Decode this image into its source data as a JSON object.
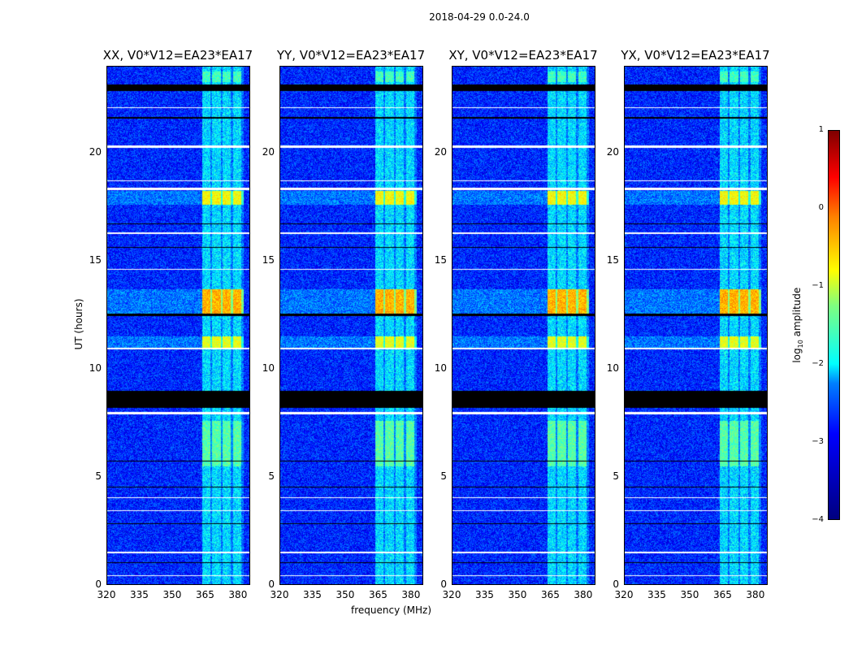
{
  "suptitle": "2018-04-29 0.0-24.0",
  "chart_data": {
    "type": "heatmap",
    "xlabel": "frequency (MHz)",
    "ylabel": "UT (hours)",
    "xlim": [
      320,
      385.6
    ],
    "ylim": [
      0,
      24
    ],
    "xticks": [
      "320",
      "335",
      "350",
      "365",
      "380"
    ],
    "xtick_values": [
      320,
      335,
      350,
      365,
      380
    ],
    "yticks": [
      "0",
      "5",
      "10",
      "15",
      "20"
    ],
    "ytick_values": [
      0,
      5,
      10,
      15,
      20
    ],
    "panels": [
      {
        "title": "XX, V0*V12=EA23*EA17"
      },
      {
        "title": "YY, V0*V12=EA23*EA17"
      },
      {
        "title": "XY, V0*V12=EA23*EA17"
      },
      {
        "title": "YX, V0*V12=EA23*EA17"
      }
    ],
    "rfi_band_mhz": [
      363,
      382
    ],
    "background_log10_amplitude": -3.2,
    "flagged_black_ut": [
      [
        22.9,
        23.2
      ],
      [
        8.2,
        9.0
      ],
      [
        12.45,
        12.55
      ],
      [
        15.6,
        15.65
      ],
      [
        5.7,
        5.75
      ],
      [
        4.5,
        4.55
      ],
      [
        2.8,
        2.85
      ],
      [
        1.0,
        1.05
      ],
      [
        21.6,
        21.7
      ],
      [
        16.7,
        16.75
      ]
    ],
    "flagged_white_ut": [
      [
        20.25,
        20.35
      ],
      [
        18.3,
        18.4
      ],
      [
        16.25,
        16.35
      ],
      [
        10.9,
        11.0
      ],
      [
        7.9,
        8.0
      ],
      [
        1.45,
        1.52
      ],
      [
        22.1,
        22.15
      ],
      [
        18.7,
        18.75
      ],
      [
        14.6,
        14.65
      ],
      [
        4.0,
        4.05
      ],
      [
        3.4,
        3.45
      ],
      [
        0.4,
        0.45
      ]
    ],
    "events": [
      {
        "ut": [
          12.5,
          13.7
        ],
        "level": -0.5
      },
      {
        "ut": [
          17.6,
          18.25
        ],
        "level": -0.9
      },
      {
        "ut": [
          11.0,
          11.5
        ],
        "level": -1.0
      },
      {
        "ut": [
          5.5,
          7.6
        ],
        "level": -1.7
      },
      {
        "ut": [
          23.3,
          23.8
        ],
        "level": -1.8
      }
    ],
    "colorbar": {
      "label": "log10 amplitude",
      "label_main": "log",
      "label_sub": "10",
      "label_rest": " amplitude",
      "range": [
        -4,
        1
      ],
      "ticks": [
        "1",
        "0",
        "−1",
        "−2",
        "−3",
        "−4"
      ],
      "tick_values": [
        1,
        0,
        -1,
        -2,
        -3,
        -4
      ]
    }
  }
}
